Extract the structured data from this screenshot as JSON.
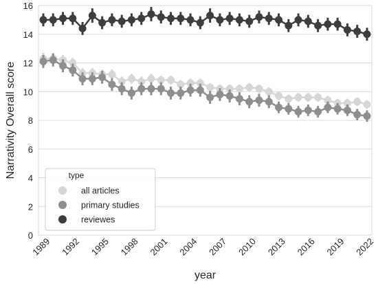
{
  "chart_data": {
    "type": "line",
    "xlabel": "year",
    "ylabel": "Narrativity Overall score",
    "xlim": [
      1989,
      2022
    ],
    "ylim": [
      0,
      16
    ],
    "yticks": [
      0,
      2,
      4,
      6,
      8,
      10,
      12,
      14,
      16
    ],
    "xticks": [
      1989,
      1992,
      1995,
      1998,
      2001,
      2004,
      2007,
      2010,
      2013,
      2016,
      2019,
      2022
    ],
    "grid": "horizontal",
    "legend": {
      "title": "type",
      "position": "bottom-left"
    },
    "x": [
      1989,
      1990,
      1991,
      1992,
      1993,
      1994,
      1995,
      1996,
      1997,
      1998,
      1999,
      2000,
      2001,
      2002,
      2003,
      2004,
      2005,
      2006,
      2007,
      2008,
      2009,
      2010,
      2011,
      2012,
      2013,
      2014,
      2015,
      2016,
      2017,
      2018,
      2019,
      2020,
      2021,
      2022
    ],
    "series": [
      {
        "name": "all articles",
        "color": "#d6d6d6",
        "values": [
          12.3,
          12.3,
          12.2,
          12.0,
          11.3,
          11.3,
          11.2,
          11.2,
          10.7,
          10.9,
          10.7,
          10.9,
          10.8,
          10.8,
          10.5,
          10.6,
          10.6,
          10.3,
          10.2,
          10.2,
          10.2,
          10.3,
          10.2,
          10.0,
          9.7,
          9.5,
          9.6,
          9.6,
          9.6,
          9.4,
          9.2,
          9.2,
          9.3,
          9.1
        ],
        "ci": [
          0.4,
          0.4,
          0.35,
          0.35,
          0.35,
          0.35,
          0.35,
          0.35,
          0.35,
          0.35,
          0.35,
          0.35,
          0.3,
          0.3,
          0.3,
          0.3,
          0.3,
          0.3,
          0.3,
          0.3,
          0.3,
          0.3,
          0.3,
          0.3,
          0.3,
          0.3,
          0.3,
          0.3,
          0.3,
          0.3,
          0.3,
          0.3,
          0.3,
          0.3
        ]
      },
      {
        "name": "primary studies",
        "color": "#8e8e8e",
        "values": [
          12.1,
          12.2,
          11.8,
          11.5,
          10.9,
          10.9,
          11.0,
          10.5,
          10.2,
          9.9,
          10.2,
          10.2,
          10.2,
          9.9,
          9.9,
          10.1,
          10.1,
          9.6,
          9.8,
          9.7,
          9.5,
          9.3,
          9.4,
          9.3,
          8.9,
          8.8,
          8.6,
          8.7,
          8.6,
          8.9,
          8.8,
          8.7,
          8.4,
          8.3
        ],
        "ci": [
          0.45,
          0.45,
          0.45,
          0.45,
          0.45,
          0.45,
          0.45,
          0.45,
          0.45,
          0.45,
          0.45,
          0.45,
          0.45,
          0.45,
          0.45,
          0.45,
          0.45,
          0.45,
          0.45,
          0.45,
          0.45,
          0.45,
          0.45,
          0.45,
          0.4,
          0.4,
          0.4,
          0.4,
          0.4,
          0.4,
          0.4,
          0.4,
          0.4,
          0.4
        ]
      },
      {
        "name": "reviewes",
        "color": "#3d3d3d",
        "values": [
          15.0,
          15.0,
          15.1,
          15.1,
          14.4,
          15.3,
          14.8,
          15.0,
          14.9,
          15.0,
          15.1,
          15.4,
          15.2,
          15.1,
          15.1,
          15.0,
          14.8,
          15.3,
          15.0,
          15.1,
          15.0,
          14.9,
          15.2,
          15.1,
          15.0,
          14.6,
          15.0,
          14.9,
          14.6,
          14.7,
          14.7,
          14.3,
          14.2,
          14.0
        ],
        "ci": [
          0.45,
          0.45,
          0.45,
          0.45,
          0.45,
          0.5,
          0.45,
          0.45,
          0.45,
          0.45,
          0.45,
          0.5,
          0.45,
          0.45,
          0.45,
          0.45,
          0.45,
          0.5,
          0.45,
          0.45,
          0.45,
          0.45,
          0.45,
          0.45,
          0.45,
          0.45,
          0.45,
          0.45,
          0.45,
          0.45,
          0.45,
          0.45,
          0.45,
          0.45
        ]
      }
    ]
  }
}
